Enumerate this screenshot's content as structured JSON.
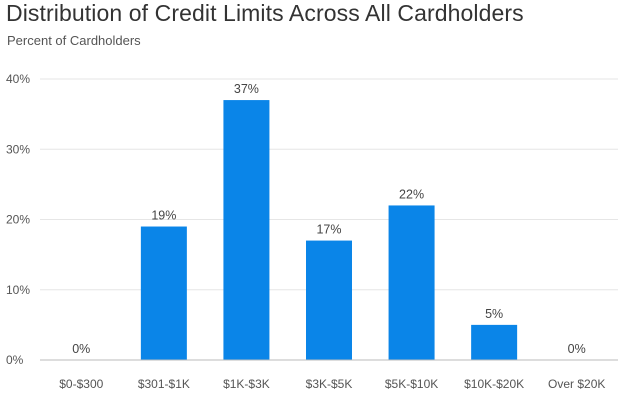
{
  "chart_data": {
    "type": "bar",
    "title": "Distribution of Credit Limits Across All Cardholders",
    "subtitle": "Percent of Cardholders",
    "categories": [
      "$0-$300",
      "$301-$1K",
      "$1K-$3K",
      "$3K-$5K",
      "$5K-$10K",
      "$10K-$20K",
      "Over $20K"
    ],
    "values": [
      0,
      19,
      37,
      17,
      22,
      5,
      0
    ],
    "data_labels": [
      "0%",
      "19%",
      "37%",
      "17%",
      "22%",
      "5%",
      "0%"
    ],
    "yticks": [
      0,
      10,
      20,
      30,
      40
    ],
    "ytick_labels": [
      "0%",
      "10%",
      "20%",
      "30%",
      "40%"
    ],
    "ylim": [
      0,
      40
    ],
    "grid": true,
    "legend": "none",
    "bar_color": "#0a85e8",
    "grid_color": "#e6e6e6",
    "axis_color": "#bbbbbb"
  }
}
